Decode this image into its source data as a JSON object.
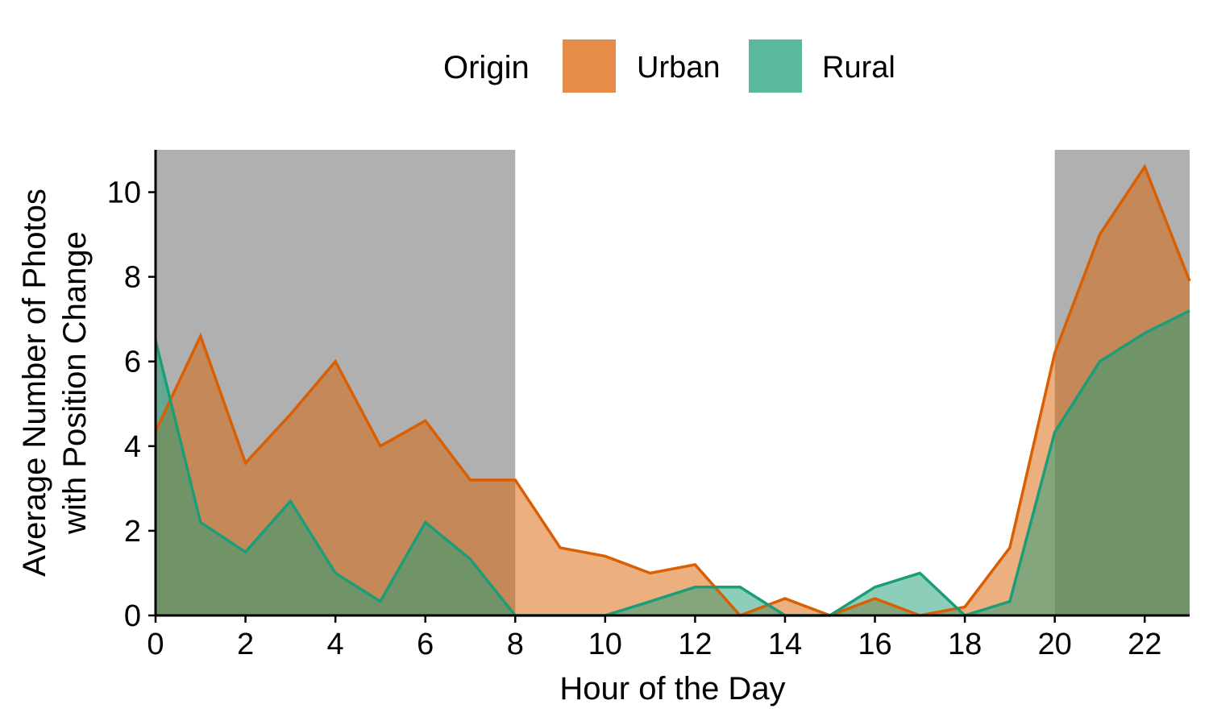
{
  "chart_data": {
    "type": "area",
    "xlabel": "Hour of the Day",
    "ylabel_lines": [
      "Average Number of Photos",
      "with Position Change"
    ],
    "xlim": [
      0,
      23
    ],
    "ylim": [
      0,
      11
    ],
    "x_ticks": [
      0,
      2,
      4,
      6,
      8,
      10,
      12,
      14,
      16,
      18,
      20,
      22
    ],
    "y_ticks": [
      0,
      2,
      4,
      6,
      8,
      10
    ],
    "shaded_night_ranges": [
      [
        0,
        8
      ],
      [
        20,
        23
      ]
    ],
    "shade_color": "#b0b0b0",
    "legend": {
      "title": "Origin",
      "position": "top"
    },
    "x": [
      0,
      1,
      2,
      3,
      4,
      5,
      6,
      7,
      8,
      9,
      10,
      11,
      12,
      13,
      14,
      15,
      16,
      17,
      18,
      19,
      20,
      21,
      22,
      23
    ],
    "series": [
      {
        "name": "Urban",
        "line_color": "#d95f02",
        "fill_color": "#d95f02",
        "values": [
          4.35,
          6.6,
          3.6,
          4.75,
          6.0,
          4.0,
          4.6,
          3.2,
          3.2,
          1.6,
          1.4,
          1.0,
          1.2,
          0.0,
          0.4,
          0.0,
          0.4,
          0.0,
          0.2,
          1.6,
          6.2,
          9.0,
          10.6,
          7.9
        ]
      },
      {
        "name": "Rural",
        "line_color": "#1b9e77",
        "fill_color": "#1b9e77",
        "values": [
          6.5,
          2.2,
          1.5,
          2.7,
          1.0,
          0.33,
          2.2,
          1.33,
          0.0,
          0.0,
          0.0,
          0.33,
          0.67,
          0.67,
          0.0,
          0.0,
          0.67,
          1.0,
          0.0,
          0.33,
          4.33,
          6.0,
          6.67,
          7.2
        ]
      }
    ]
  }
}
